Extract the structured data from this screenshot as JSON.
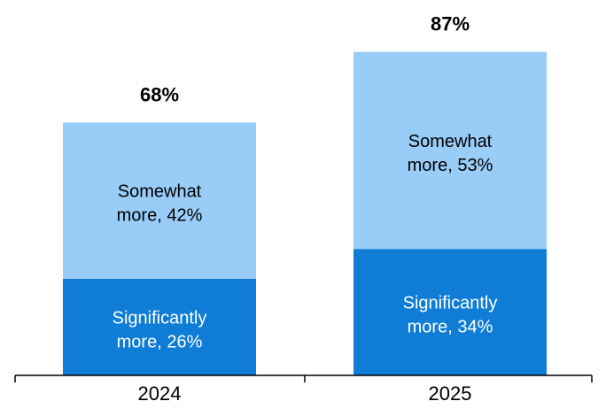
{
  "chart_data": {
    "type": "bar",
    "stacked": true,
    "categories": [
      "2024",
      "2025"
    ],
    "series": [
      {
        "key": "significantly",
        "label_line1": "Significantly",
        "label_line2": [
          "more, 26%",
          "more, 34%"
        ],
        "values": [
          26,
          34
        ],
        "color": "#0f7dd6",
        "text_color": "#ffffff"
      },
      {
        "key": "somewhat",
        "label_line1": "Somewhat",
        "label_line2": [
          "more, 42%",
          "more, 53%"
        ],
        "values": [
          42,
          53
        ],
        "color": "#99ccf6",
        "text_color": "#000000"
      }
    ],
    "totals": [
      "68%",
      "87%"
    ],
    "ylim": [
      0,
      100
    ],
    "grid": false,
    "legend": "none",
    "axis_color": "#000000"
  }
}
